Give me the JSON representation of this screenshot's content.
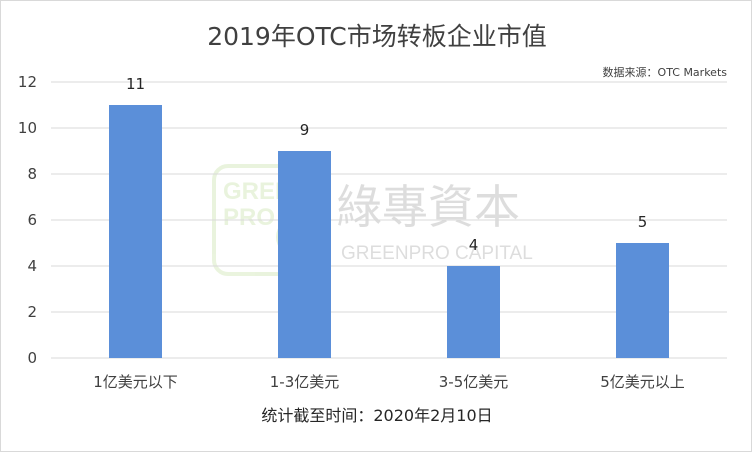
{
  "title": "2019年OTC市场转板企业市值",
  "source": "数据来源：OTC Markets",
  "footnote": "统计截至时间：2020年2月10日",
  "watermark": {
    "logo_line1": "GREEN",
    "logo_line2": "PRO",
    "brand_cn": "綠專資本",
    "brand_en": "GREENPRO CAPITAL"
  },
  "colors": {
    "bar": "#5b8fd9",
    "grid": "#d9d9d9",
    "watermark": "#8bc34a"
  },
  "chart_data": {
    "type": "bar",
    "title": "2019年OTC市场转板企业市值",
    "categories": [
      "1亿美元以下",
      "1-3亿美元",
      "3-5亿美元",
      "5亿美元以上"
    ],
    "values": [
      11,
      9,
      4,
      5
    ],
    "ylim": [
      0,
      12
    ],
    "yticks": [
      0,
      2,
      4,
      6,
      8,
      10,
      12
    ],
    "grid": true,
    "data_labels": true
  }
}
